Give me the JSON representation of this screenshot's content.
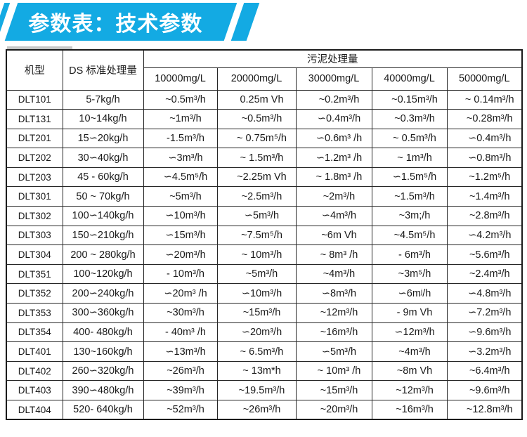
{
  "banner": {
    "title": "参数表：技术参数",
    "color": "#13aae3"
  },
  "table": {
    "header": {
      "model": "机型",
      "ds": "DS 标准处理量",
      "sludge_group": "污泥处理量",
      "concentrations": [
        "10000mg/L",
        "20000mg/L",
        "30000mg/L",
        "40000mg/L",
        "50000mg/L"
      ]
    },
    "rows": [
      {
        "model": "DLT101",
        "ds": "5-7kg/h",
        "capacities": [
          "~0.5m³/h",
          "0.25m Vh",
          "~0.2m³/h",
          "~0.15m³/h",
          "~ 0.14m³/h"
        ]
      },
      {
        "model": "DLT131",
        "ds": "10~14kg/h",
        "capacities": [
          "~1m³/h",
          "~0.5m³/h",
          "∽0.4m³/h",
          "~0.3m³/h",
          "~0.28m³/h"
        ]
      },
      {
        "model": "DLT201",
        "ds": "15∽20kg/h",
        "capacities": [
          "-1.5m³/h",
          "~ 0.75m⁵/h",
          "∽0.6m³ /h",
          "~ 0.5m³/h",
          "∽0.4m³/h"
        ]
      },
      {
        "model": "DLT202",
        "ds": "30∽40kg/h",
        "capacities": [
          "∽3m³/h",
          "~ 1.5m³/h",
          "∽1.2m³ /h",
          "~ 1m³/h",
          "∽0.8m³/h"
        ]
      },
      {
        "model": "DLT203",
        "ds": "45 - 60kg/h",
        "capacities": [
          "∽4.5m⁵/h",
          "~2.25m Vh",
          "~ 1.8m³ /h",
          "∽1.5m⁵/h",
          "~1.2m⁵/h"
        ]
      },
      {
        "model": "DLT301",
        "ds": "50 ~ 70kg/h",
        "capacities": [
          "~5m³/h",
          "~2.5m³/h",
          "~2m³/h",
          "~1.5m³/h",
          "~1.4m³/h"
        ]
      },
      {
        "model": "DLT302",
        "ds": "100∽140kg/h",
        "capacities": [
          "∽10m³/h",
          "∽5m³/h",
          "∽4m³/h",
          "~3m;/h",
          "~2.8m³/h"
        ]
      },
      {
        "model": "DLT303",
        "ds": "150∽210kg/h",
        "capacities": [
          "∽15m³/h",
          "~7.5m⁵/h",
          "~6m Vh",
          "~4.5m⁵/h",
          "∽4.2m³/h"
        ]
      },
      {
        "model": "DLT304",
        "ds": "200 ~ 280kg/h",
        "capacities": [
          "∽20m³/h",
          "~ 10m³/h",
          "~ 8m³ /h",
          "- 6m³/h",
          "~5.6m³/h"
        ]
      },
      {
        "model": "DLT351",
        "ds": "100~120kg/h",
        "capacities": [
          "- 10m³/h",
          "~5m³/h",
          "~4m³/h",
          "~3m⁵/h",
          "~2.4m³/h"
        ]
      },
      {
        "model": "DLT352",
        "ds": "200∽240kg/h",
        "capacities": [
          "∽20m³ /h",
          "∽10m³/h",
          "∽8m³/h",
          "∽6mʲ/h",
          "∽4.8m³/h"
        ]
      },
      {
        "model": "DLT353",
        "ds": "300∽360kg/h",
        "capacities": [
          "~30m³/h",
          "~15m³/h",
          "~12m³/h",
          "- 9m Vh",
          "∽7.2m³/h"
        ]
      },
      {
        "model": "DLT354",
        "ds": "400- 480kg/h",
        "capacities": [
          "- 40m³ /h",
          "∽20m³/h",
          "~16m³/h",
          "∽12m³/h",
          "∽9.6m³/h"
        ]
      },
      {
        "model": "DLT401",
        "ds": "130~160kg/h",
        "capacities": [
          "∽13m³/h",
          "~ 6.5m³/h",
          "∽5m³/h",
          "~4m³/h",
          "∽3.2m³/h"
        ]
      },
      {
        "model": "DLT402",
        "ds": "260∽320kg/h",
        "capacities": [
          "~26m³/h",
          "~ 13m*h",
          "~ 10m³ /h",
          "~8m Vh",
          "~6.4m³/h"
        ]
      },
      {
        "model": "DLT403",
        "ds": "390∽480kg/h",
        "capacities": [
          "~39m³/h",
          "~19.5m³/h",
          "~15m³/h",
          "~12m³/h",
          "~9.6m³/h"
        ]
      },
      {
        "model": "DLT404",
        "ds": "520- 640kg/h",
        "capacities": [
          "~52m³/h",
          "~26m³/h",
          "~20m³/h",
          "~16m³/h",
          "~12.8m³/h"
        ]
      }
    ]
  }
}
